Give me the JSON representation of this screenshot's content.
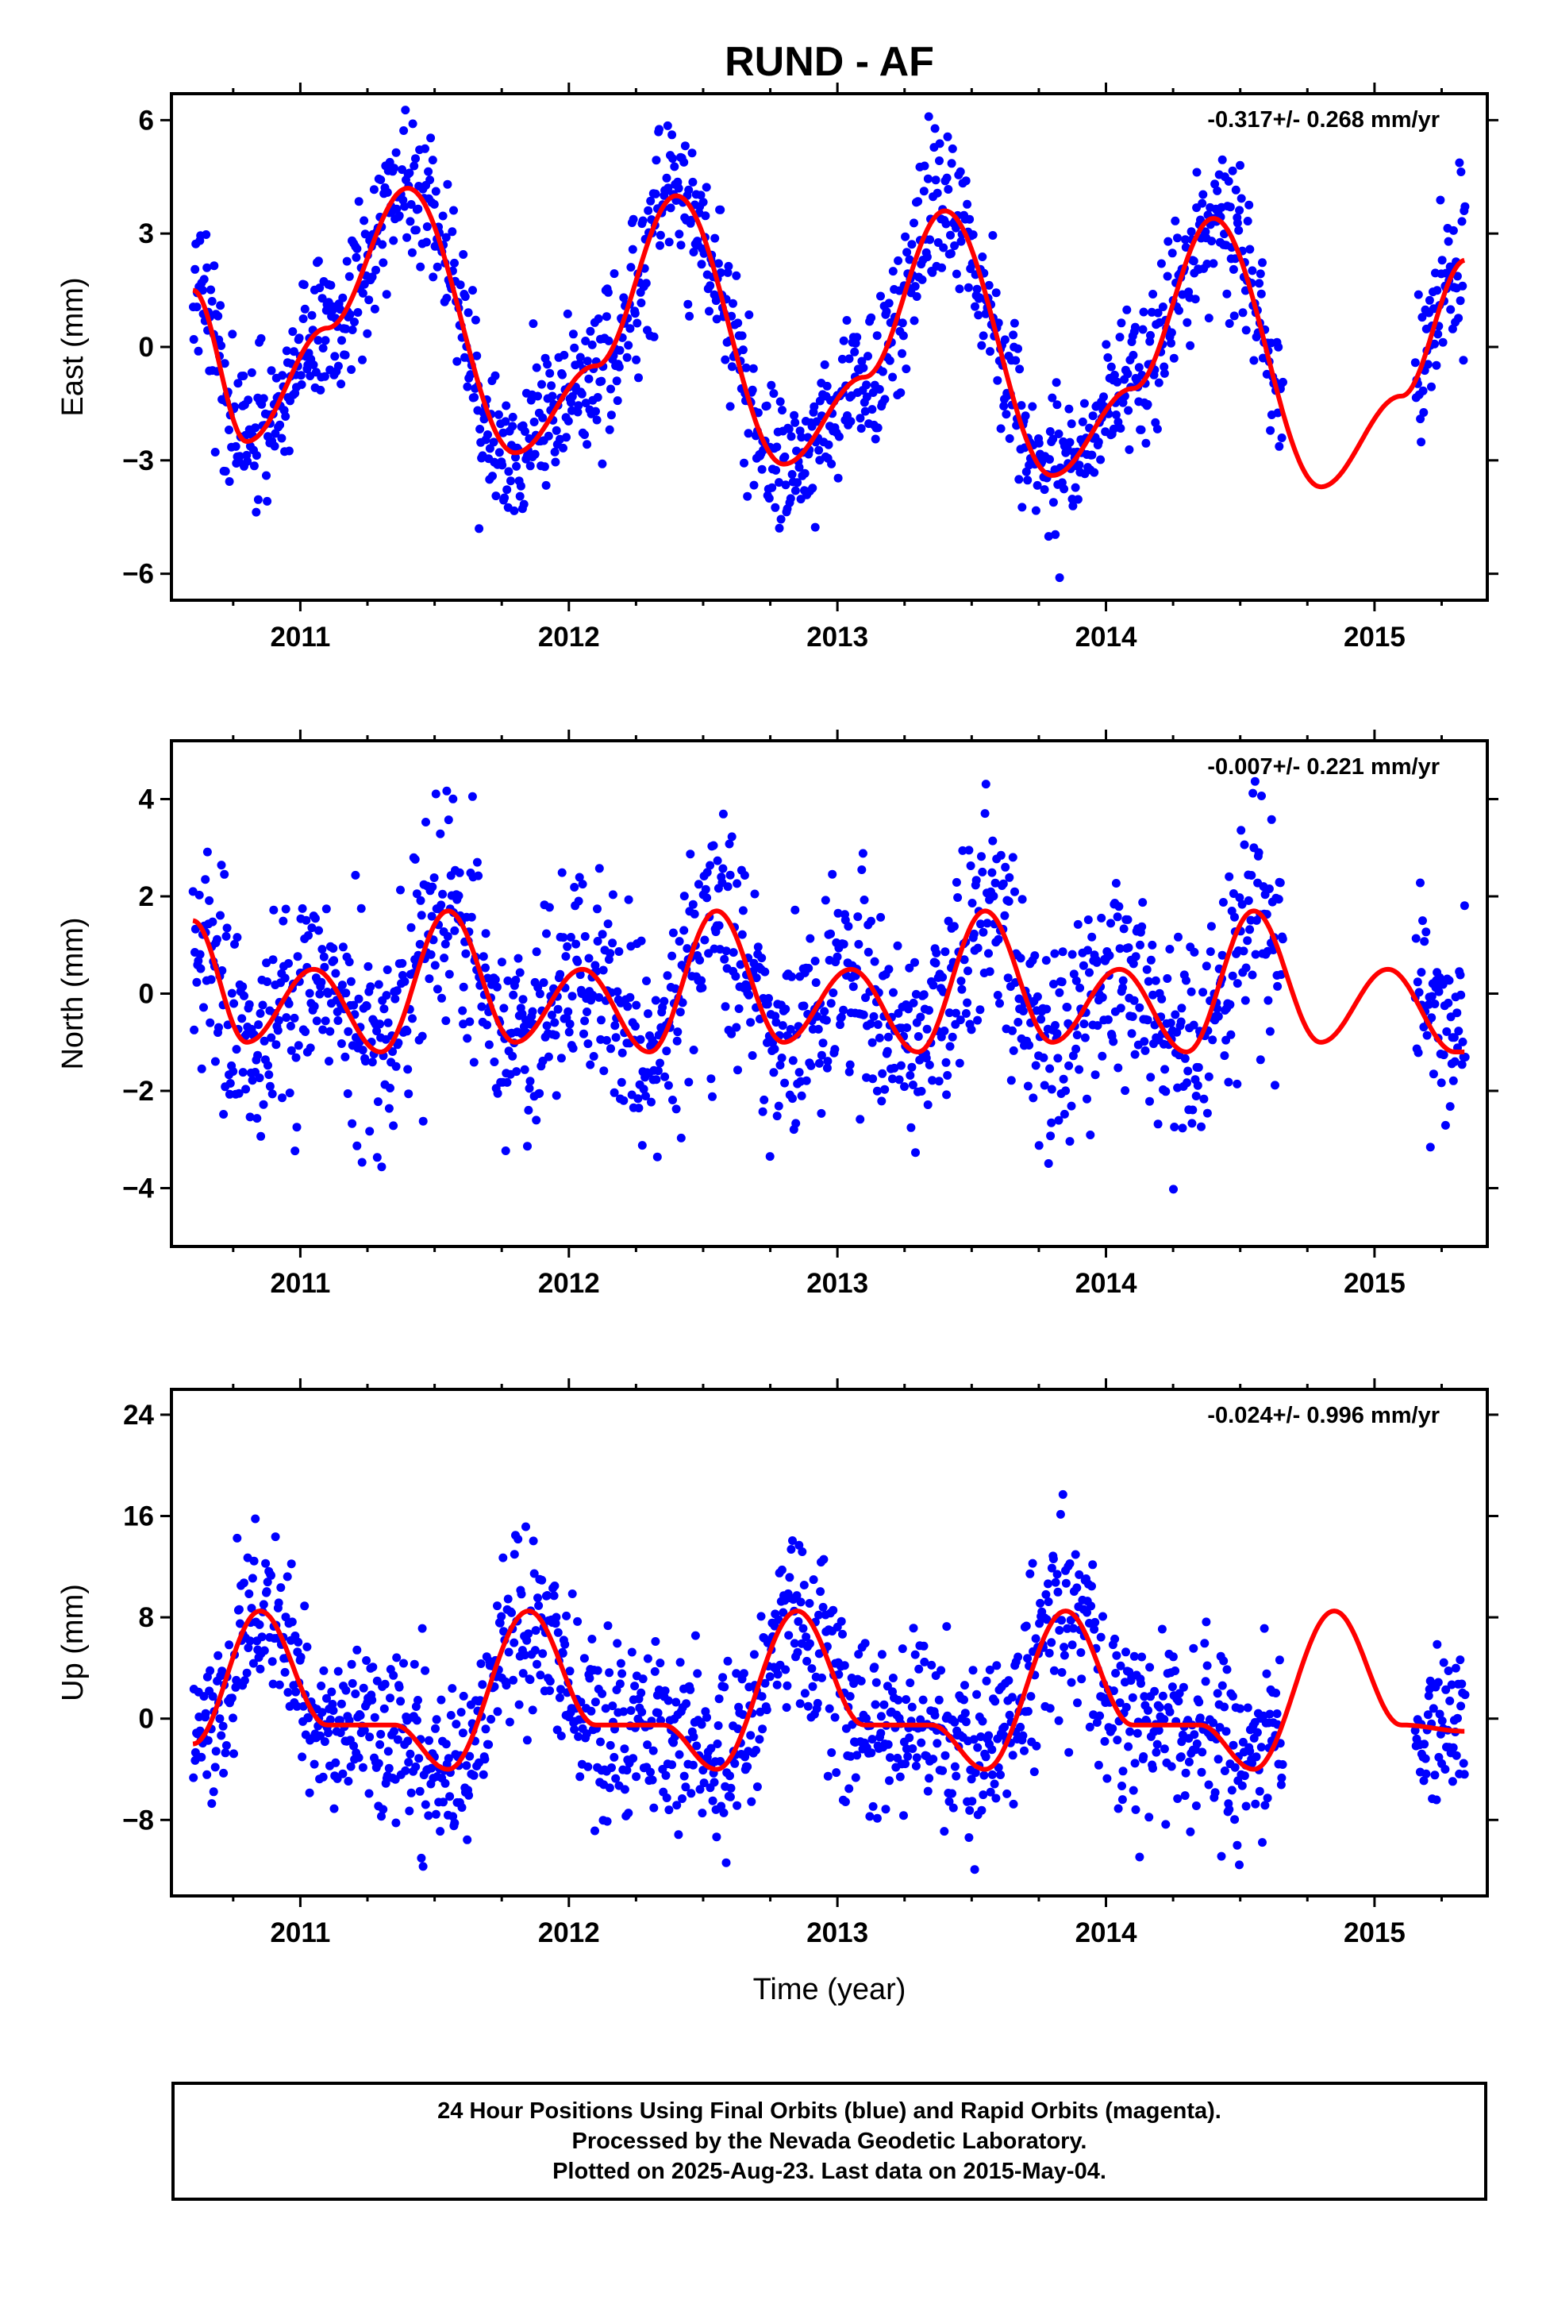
{
  "title": "RUND - AF",
  "xlabel": "Time (year)",
  "colors": {
    "points": "#0000ff",
    "fit": "#ff0000",
    "frame": "#000000"
  },
  "footer": {
    "line1": "24 Hour Positions Using Final Orbits (blue) and Rapid Orbits (magenta).",
    "line2": "Processed by the Nevada Geodetic Laboratory.",
    "line3": "Plotted on 2025-Aug-23. Last data on 2015-May-04."
  },
  "chart_data": [
    {
      "type": "scatter",
      "ylabel": "East (mm)",
      "rate": "-0.317+/- 0.268 mm/yr",
      "xlim": [
        2010.52,
        2015.42
      ],
      "ylim": [
        -6.7,
        6.7
      ],
      "xticks": [
        2011,
        2012,
        2013,
        2014,
        2015
      ],
      "yticks": [
        -6,
        -3,
        0,
        3,
        6
      ],
      "yticklabels": [
        "−6",
        "−3",
        "0",
        "3",
        "6"
      ],
      "fit_model": {
        "slope": -0.317,
        "seasonal_amplitude": 3.6,
        "noise_sd": 1.0
      },
      "data_start": 2010.6,
      "data_end": 2015.34,
      "gaps": [
        [
          2014.66,
          2015.15
        ]
      ],
      "series": [
        {
          "name": "Final Orbits",
          "values": [
            [
              2010.6,
              1.2
            ],
            [
              2010.7,
              -1.5
            ],
            [
              2010.8,
              -3.5
            ],
            [
              2011.0,
              -1.0
            ],
            [
              2011.1,
              1.0
            ],
            [
              2011.3,
              4.5
            ],
            [
              2011.4,
              5.2
            ],
            [
              2011.6,
              2.5
            ],
            [
              2011.8,
              -2.5
            ],
            [
              2011.9,
              -3.5
            ],
            [
              2012.1,
              -1.0
            ],
            [
              2012.3,
              1.5
            ],
            [
              2012.4,
              3.5
            ],
            [
              2012.5,
              4.0
            ],
            [
              2012.7,
              -2.0
            ],
            [
              2012.8,
              -3.0
            ],
            [
              2013.0,
              -2.0
            ],
            [
              2013.2,
              0.0
            ],
            [
              2013.4,
              3.5
            ],
            [
              2013.6,
              2.0
            ],
            [
              2013.8,
              -3.0
            ],
            [
              2013.9,
              -4.0
            ],
            [
              2014.1,
              -1.5
            ],
            [
              2014.3,
              2.0
            ],
            [
              2014.4,
              4.5
            ],
            [
              2014.6,
              0.5
            ],
            [
              2015.2,
              -1.0
            ],
            [
              2015.3,
              2.5
            ]
          ]
        },
        {
          "name": "Fit",
          "type": "line",
          "values": [
            [
              2010.6,
              1.5
            ],
            [
              2010.8,
              -2.5
            ],
            [
              2011.1,
              0.5
            ],
            [
              2011.4,
              4.2
            ],
            [
              2011.8,
              -2.8
            ],
            [
              2012.1,
              -0.5
            ],
            [
              2012.4,
              4.0
            ],
            [
              2012.8,
              -3.1
            ],
            [
              2013.1,
              -0.8
            ],
            [
              2013.4,
              3.6
            ],
            [
              2013.8,
              -3.4
            ],
            [
              2014.1,
              -1.1
            ],
            [
              2014.4,
              3.4
            ],
            [
              2014.8,
              -3.7
            ],
            [
              2015.1,
              -1.3
            ],
            [
              2015.34,
              2.3
            ]
          ]
        }
      ]
    },
    {
      "type": "scatter",
      "ylabel": "North (mm)",
      "rate": "-0.007+/- 0.221 mm/yr",
      "xlim": [
        2010.52,
        2015.42
      ],
      "ylim": [
        -5.2,
        5.2
      ],
      "xticks": [
        2011,
        2012,
        2013,
        2014,
        2015
      ],
      "yticks": [
        -4,
        -2,
        0,
        2,
        4
      ],
      "yticklabels": [
        "−4",
        "−2",
        "0",
        "2",
        "4"
      ],
      "fit_model": {
        "slope": -0.007,
        "annual_amplitude": 0.55,
        "semiannual_amplitude": 1.05,
        "noise_sd": 1.1
      },
      "data_start": 2010.6,
      "data_end": 2015.34,
      "gaps": [
        [
          2014.66,
          2015.15
        ]
      ],
      "series": [
        {
          "name": "Final Orbits",
          "values": [
            [
              2010.6,
              0.5
            ],
            [
              2010.8,
              -1.0
            ],
            [
              2011.0,
              1.0
            ],
            [
              2011.2,
              -1.0
            ],
            [
              2011.5,
              1.5
            ],
            [
              2011.7,
              0.5
            ],
            [
              2011.9,
              -2.0
            ],
            [
              2012.1,
              0.0
            ],
            [
              2012.3,
              -1.0
            ],
            [
              2012.5,
              1.5
            ],
            [
              2012.8,
              -1.5
            ],
            [
              2013.0,
              2.0
            ],
            [
              2013.3,
              -1.0
            ],
            [
              2013.5,
              2.0
            ],
            [
              2013.8,
              -1.0
            ],
            [
              2014.0,
              1.0
            ],
            [
              2014.2,
              -1.5
            ],
            [
              2014.5,
              1.5
            ],
            [
              2015.2,
              -1.0
            ],
            [
              2015.3,
              -0.5
            ]
          ]
        },
        {
          "name": "Fit",
          "type": "line",
          "values": [
            [
              2010.6,
              1.5
            ],
            [
              2010.8,
              -1.0
            ],
            [
              2011.05,
              0.5
            ],
            [
              2011.3,
              -1.2
            ],
            [
              2011.55,
              1.7
            ],
            [
              2011.8,
              -1.0
            ],
            [
              2012.05,
              0.5
            ],
            [
              2012.3,
              -1.2
            ],
            [
              2012.55,
              1.7
            ],
            [
              2012.8,
              -1.0
            ],
            [
              2013.05,
              0.5
            ],
            [
              2013.3,
              -1.2
            ],
            [
              2013.55,
              1.7
            ],
            [
              2013.8,
              -1.0
            ],
            [
              2014.05,
              0.5
            ],
            [
              2014.3,
              -1.2
            ],
            [
              2014.55,
              1.7
            ],
            [
              2014.8,
              -1.0
            ],
            [
              2015.05,
              0.5
            ],
            [
              2015.3,
              -1.2
            ]
          ]
        }
      ]
    },
    {
      "type": "scatter",
      "ylabel": "Up (mm)",
      "rate": "-0.024+/- 0.996 mm/yr",
      "xlim": [
        2010.52,
        2015.42
      ],
      "ylim": [
        -14.0,
        26.0
      ],
      "xticks": [
        2011,
        2012,
        2013,
        2014,
        2015
      ],
      "yticks": [
        -8,
        0,
        8,
        16,
        24
      ],
      "yticklabels": [
        "−8",
        "0",
        "8",
        "16",
        "24"
      ],
      "fit_model": {
        "slope": -0.024,
        "annual_amplitude": 5.2,
        "semiannual_amplitude": 2.6,
        "noise_sd": 3.5
      },
      "data_start": 2010.6,
      "data_end": 2015.34,
      "gaps": [
        [
          2014.66,
          2015.15
        ]
      ],
      "series": [
        {
          "name": "Final Orbits",
          "values": [
            [
              2010.6,
              -2.0
            ],
            [
              2010.8,
              12.0
            ],
            [
              2011.0,
              14.0
            ],
            [
              2011.1,
              8.0
            ],
            [
              2011.3,
              2.0
            ],
            [
              2011.5,
              -6.0
            ],
            [
              2011.7,
              0.0
            ],
            [
              2011.9,
              6.0
            ],
            [
              2012.0,
              0.0
            ],
            [
              2012.2,
              -6.0
            ],
            [
              2012.4,
              -4.0
            ],
            [
              2012.6,
              0.0
            ],
            [
              2012.8,
              6.0
            ],
            [
              2013.0,
              4.0
            ],
            [
              2013.2,
              -2.0
            ],
            [
              2013.4,
              0.0
            ],
            [
              2013.6,
              -2.0
            ],
            [
              2013.8,
              8.0
            ],
            [
              2013.9,
              12.0
            ],
            [
              2014.1,
              0.0
            ],
            [
              2014.3,
              -6.0
            ],
            [
              2014.5,
              -6.0
            ],
            [
              2014.6,
              0.0
            ],
            [
              2015.2,
              4.0
            ],
            [
              2015.3,
              2.0
            ]
          ]
        },
        {
          "name": "Fit",
          "type": "line",
          "values": [
            [
              2010.6,
              -2.0
            ],
            [
              2010.85,
              8.5
            ],
            [
              2011.1,
              -0.5
            ],
            [
              2011.35,
              -0.5
            ],
            [
              2011.55,
              -4.0
            ],
            [
              2011.85,
              8.5
            ],
            [
              2012.1,
              -0.5
            ],
            [
              2012.35,
              -0.5
            ],
            [
              2012.55,
              -4.0
            ],
            [
              2012.85,
              8.5
            ],
            [
              2013.1,
              -0.5
            ],
            [
              2013.35,
              -0.5
            ],
            [
              2013.55,
              -4.0
            ],
            [
              2013.85,
              8.5
            ],
            [
              2014.1,
              -0.5
            ],
            [
              2014.35,
              -0.5
            ],
            [
              2014.55,
              -4.0
            ],
            [
              2014.85,
              8.5
            ],
            [
              2015.1,
              -0.5
            ],
            [
              2015.34,
              -1.0
            ]
          ]
        }
      ]
    }
  ]
}
